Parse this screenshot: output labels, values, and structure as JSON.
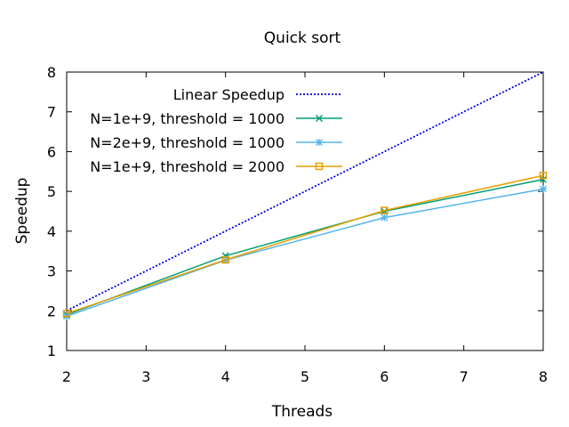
{
  "chart_data": {
    "type": "line",
    "title": "Quick sort",
    "xlabel": "Threads",
    "ylabel": "Speedup",
    "xlim": [
      2,
      8
    ],
    "ylim": [
      1,
      8
    ],
    "x_ticks": [
      "2",
      "3",
      "4",
      "5",
      "6",
      "7",
      "8"
    ],
    "y_ticks": [
      "1",
      "2",
      "3",
      "4",
      "5",
      "6",
      "7",
      "8"
    ],
    "grid": false,
    "legend_position": "top-left",
    "series": [
      {
        "name": "Linear Speedup",
        "color": "#0000dd",
        "style": "dotted",
        "marker": "none",
        "x": [
          2,
          8
        ],
        "y": [
          2,
          8
        ]
      },
      {
        "name": "N=1e+9, threshold = 1000",
        "color": "#009e73",
        "style": "solid",
        "marker": "x",
        "x": [
          2,
          4,
          6,
          8
        ],
        "y": [
          1.9,
          3.38,
          4.5,
          5.3
        ]
      },
      {
        "name": "N=2e+9, threshold = 1000",
        "color": "#56b4e9",
        "style": "solid",
        "marker": "star",
        "x": [
          2,
          4,
          6,
          8
        ],
        "y": [
          1.86,
          3.27,
          4.34,
          5.06
        ]
      },
      {
        "name": "N=1e+9, threshold = 2000",
        "color": "#e69f00",
        "style": "solid",
        "marker": "square",
        "x": [
          2,
          4,
          6,
          8
        ],
        "y": [
          1.93,
          3.28,
          4.52,
          5.4
        ]
      }
    ]
  }
}
